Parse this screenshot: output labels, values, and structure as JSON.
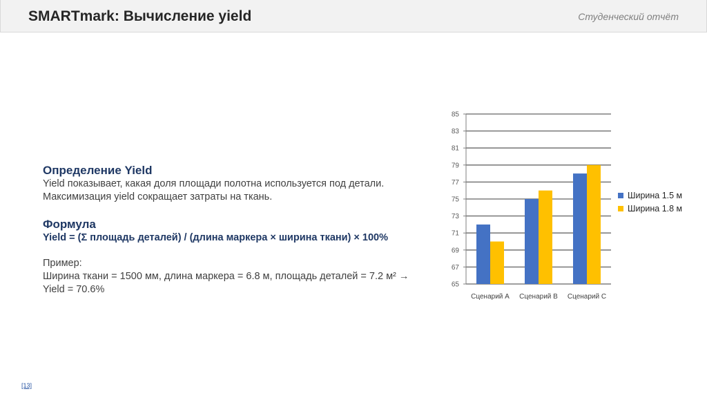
{
  "header": {
    "title": "SMARTmark: Вычисление yield",
    "subtitle": "Студенческий отчёт"
  },
  "section1": {
    "heading": "Определение Yield",
    "line1": "Yield показывает, какая доля площади полотна используется под детали.",
    "line2": "Максимизация yield сокращает затраты на ткань."
  },
  "section2": {
    "heading": "Формула",
    "formula": "Yield = (Σ площадь деталей) / (длина маркера × ширина ткани) × 100%"
  },
  "example": {
    "label": "Пример:",
    "line1": "Ширина ткани = 1500 мм, длина маркера = 6.8 м, площадь деталей = 7.2 м² →",
    "line2": "Yield = 70.6%"
  },
  "footer": {
    "link": "[13]"
  },
  "colors": {
    "series1": "#4472c4",
    "series2": "#ffc000",
    "grid": "#7f7f7f"
  },
  "chart_data": {
    "type": "bar",
    "categories": [
      "Сценарий A",
      "Сценарий B",
      "Сценарий C"
    ],
    "series": [
      {
        "name": "Ширина 1.5 м",
        "values": [
          72,
          75,
          78
        ]
      },
      {
        "name": "Ширина 1.8 м",
        "values": [
          70,
          76,
          79
        ]
      }
    ],
    "ylim": [
      65,
      85
    ],
    "yticks": [
      65,
      67,
      69,
      71,
      73,
      75,
      77,
      79,
      81,
      83,
      85
    ],
    "grid": true,
    "legend": "right"
  }
}
